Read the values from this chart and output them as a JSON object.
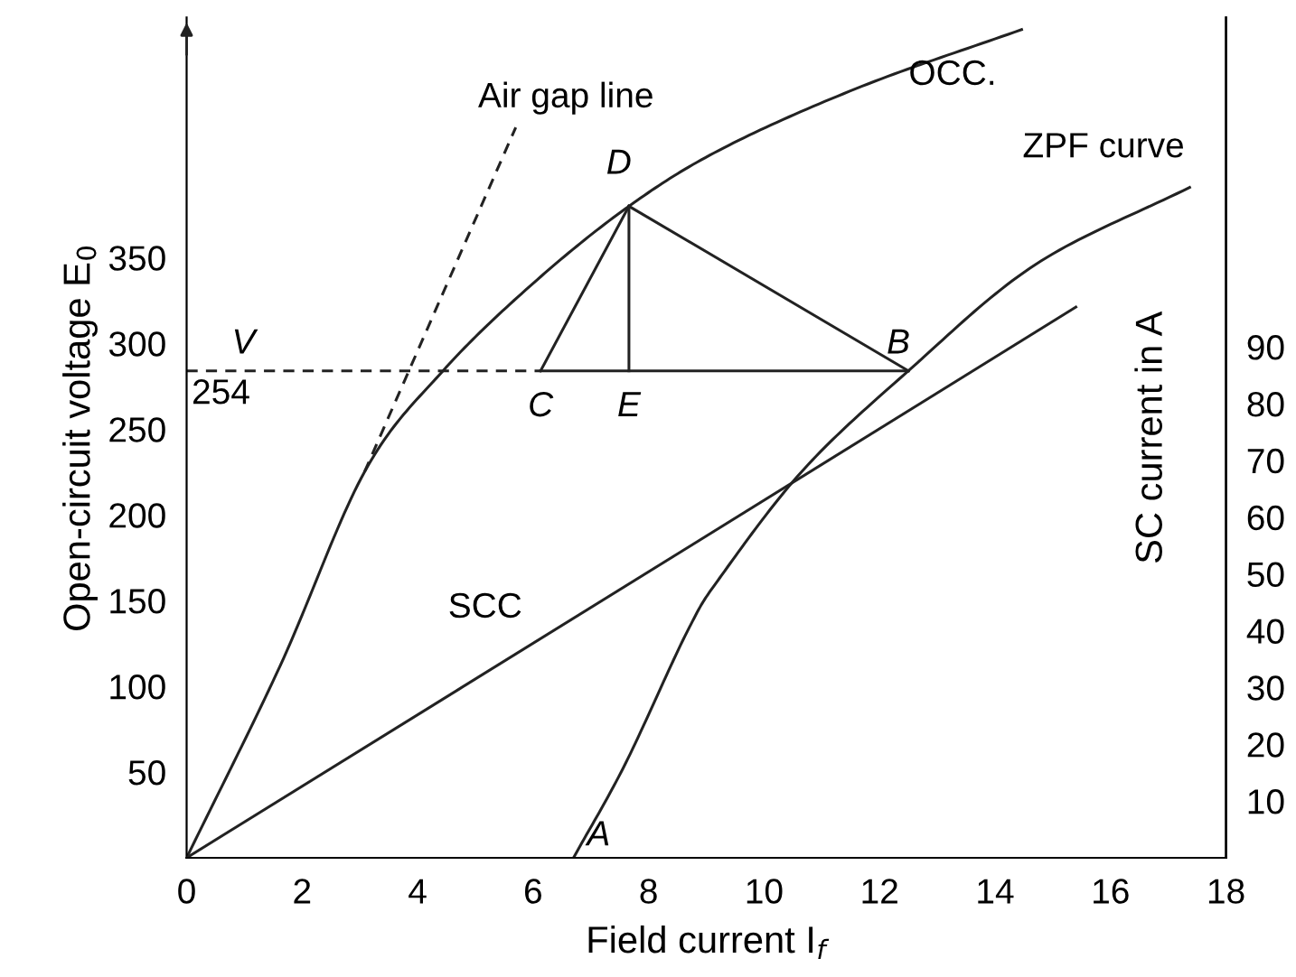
{
  "chart_data": {
    "type": "line",
    "xlabel": "Field current I$_{f}$",
    "ylabel": "Open-circuit voltage E$_{0}$",
    "y2label": "SC current in A",
    "xlim": [
      0,
      18
    ],
    "xticks": [
      0,
      2,
      4,
      6,
      8,
      10,
      12,
      14,
      16,
      18
    ],
    "ylim": [
      0,
      490
    ],
    "yticks": [
      50,
      100,
      150,
      200,
      250,
      300,
      350
    ],
    "y2lim": [
      0,
      148
    ],
    "y2ticks": [
      10,
      20,
      30,
      40,
      50,
      60,
      70,
      80,
      90
    ],
    "grid": false,
    "marker": "none",
    "series": [
      {
        "name": "OCC.",
        "color": "#222222",
        "line_style": "solid",
        "x": [
          0,
          1.62,
          3.08,
          4.44,
          6,
          7.66,
          9.3,
          11.7,
          14.46
        ],
        "values": [
          0,
          112,
          225,
          284,
          335,
          380,
          414,
          450,
          483
        ]
      },
      {
        "name": "ZPF curve",
        "color": "#222222",
        "line_style": "solid",
        "x": [
          6.7,
          7.6,
          8.67,
          9.27,
          10.7,
          12.5,
          14.7,
          17.37
        ],
        "values": [
          0,
          55,
          132,
          165,
          227,
          284,
          346,
          391
        ]
      },
      {
        "name": "SCC",
        "color": "#222222",
        "line_style": "solid",
        "axis": "y2",
        "x": [
          0,
          15.4
        ],
        "values": [
          0,
          97
        ]
      },
      {
        "name": "Air gap line",
        "color": "#222222",
        "line_style": "dashed",
        "x": [
          3.08,
          5.7
        ],
        "values": [
          225,
          426
        ]
      },
      {
        "color": "#222222",
        "line_style": "dashed",
        "x": [
          0,
          6.13
        ],
        "values": [
          284,
          284
        ]
      },
      {
        "color": "#222222",
        "line_style": "solid",
        "x": [
          6.13,
          7.66
        ],
        "values": [
          284,
          380
        ]
      },
      {
        "color": "#222222",
        "line_style": "solid",
        "x": [
          7.66,
          12.5
        ],
        "values": [
          380,
          284
        ]
      },
      {
        "color": "#222222",
        "line_style": "solid",
        "x": [
          6.13,
          12.5
        ],
        "values": [
          284,
          284
        ]
      },
      {
        "color": "#222222",
        "line_style": "solid",
        "x": [
          7.66,
          7.66
        ],
        "values": [
          380,
          284
        ]
      }
    ],
    "annotations": [
      {
        "text": "D",
        "x": 7.66,
        "y": 380
      },
      {
        "text": "C",
        "x": 6.13,
        "y": 284
      },
      {
        "text": "E",
        "x": 7.66,
        "y": 284
      },
      {
        "text": "B",
        "x": 12.5,
        "y": 284
      },
      {
        "text": "A",
        "x": 6.7,
        "y": 0
      },
      {
        "text": "V",
        "x": 0,
        "y": 284
      },
      {
        "text": "254",
        "x": 0,
        "y": 284
      }
    ]
  }
}
